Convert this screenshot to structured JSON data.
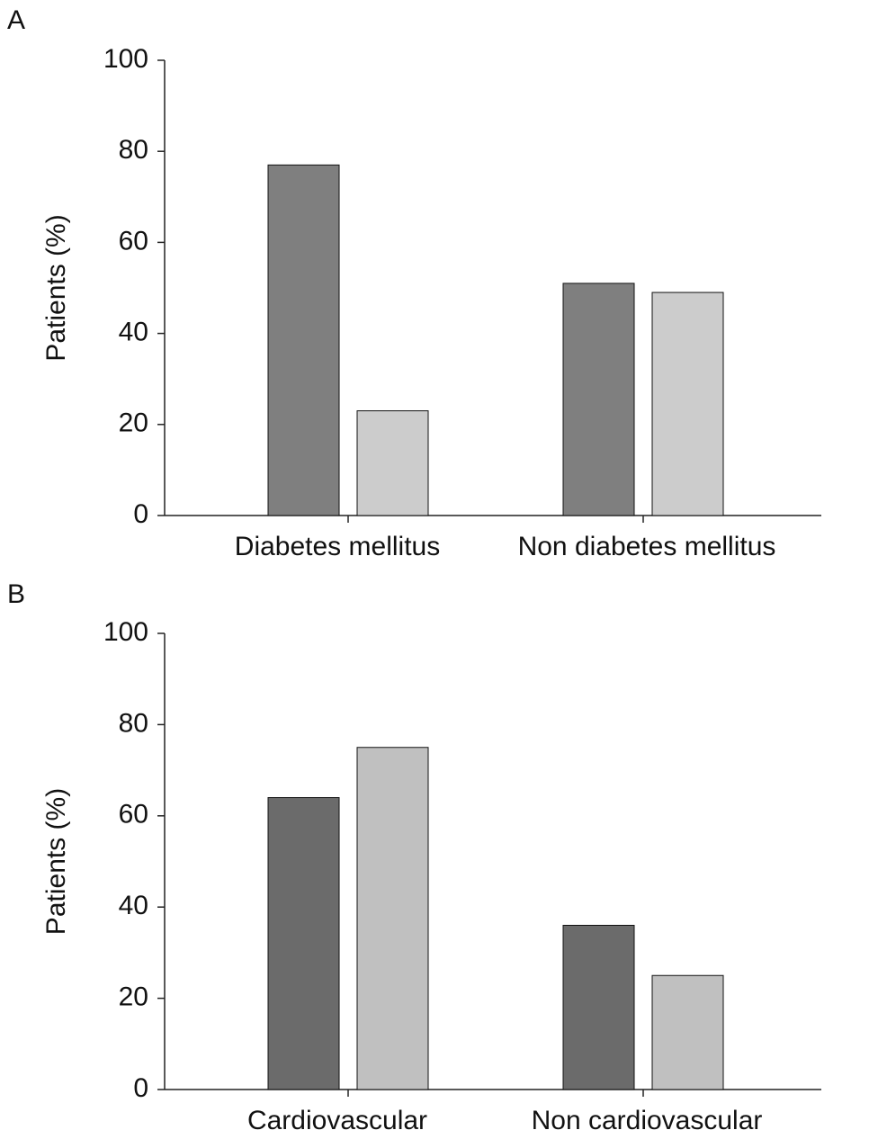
{
  "chart_data": [
    {
      "type": "bar",
      "panel": "A",
      "y_label": "Patients (%)",
      "categories": [
        "Diabetes mellitus",
        "Non diabetes mellitus"
      ],
      "series": [
        {
          "color": "#7f7f7f",
          "values": [
            77,
            51
          ]
        },
        {
          "color": "#cccccc",
          "values": [
            23,
            49
          ]
        }
      ],
      "ylim": [
        0,
        100
      ],
      "yticks": [
        0,
        20,
        40,
        60,
        80,
        100
      ]
    },
    {
      "type": "bar",
      "panel": "B",
      "y_label": "Patients (%)",
      "categories": [
        "Cardiovascular",
        "Non cardiovascular"
      ],
      "series": [
        {
          "color": "#6b6b6b",
          "values": [
            64,
            36
          ]
        },
        {
          "color": "#c0c0c0",
          "values": [
            75,
            25
          ]
        }
      ],
      "ylim": [
        0,
        100
      ],
      "yticks": [
        0,
        20,
        40,
        60,
        80,
        100
      ]
    }
  ]
}
